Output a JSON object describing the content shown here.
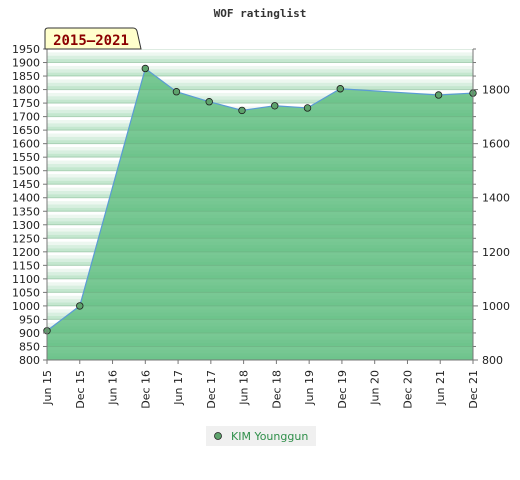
{
  "chart_data": {
    "type": "area",
    "title": "WOF ratinglist",
    "period_badge": "2015–2021",
    "x_tick_labels": [
      "Jun 15",
      "Dec 15",
      "Jun 16",
      "Dec 16",
      "Jun 17",
      "Dec 17",
      "Jun 18",
      "Dec 18",
      "Jun 19",
      "Dec 19",
      "Jun 20",
      "Dec 20",
      "Jun 21",
      "Dec 21"
    ],
    "y_left": {
      "min": 800,
      "max": 1950,
      "step": 50
    },
    "y_right": {
      "min": 800,
      "max": 1950,
      "ticks": [
        800,
        1000,
        1200,
        1400,
        1600,
        1800
      ]
    },
    "series": [
      {
        "name": "KIM Younggun",
        "points": [
          {
            "x": 0,
            "y": 908
          },
          {
            "x": 1,
            "y": 1000
          },
          {
            "x": 3,
            "y": 1878
          },
          {
            "x": 3.95,
            "y": 1792
          },
          {
            "x": 4.95,
            "y": 1755
          },
          {
            "x": 5.95,
            "y": 1723
          },
          {
            "x": 6.95,
            "y": 1740
          },
          {
            "x": 7.95,
            "y": 1732
          },
          {
            "x": 8.95,
            "y": 1803
          },
          {
            "x": 11.95,
            "y": 1780
          },
          {
            "x": 13,
            "y": 1787
          }
        ]
      }
    ],
    "colors": {
      "fill": "#5cbc7c",
      "line": "#5b9bd5",
      "marker": "#5ea36c",
      "badge_bg": "#ffffcc",
      "badge_text": "#8b0000",
      "legend_text": "#2f8f4a"
    },
    "legend": {
      "position": "bottom-center"
    }
  }
}
